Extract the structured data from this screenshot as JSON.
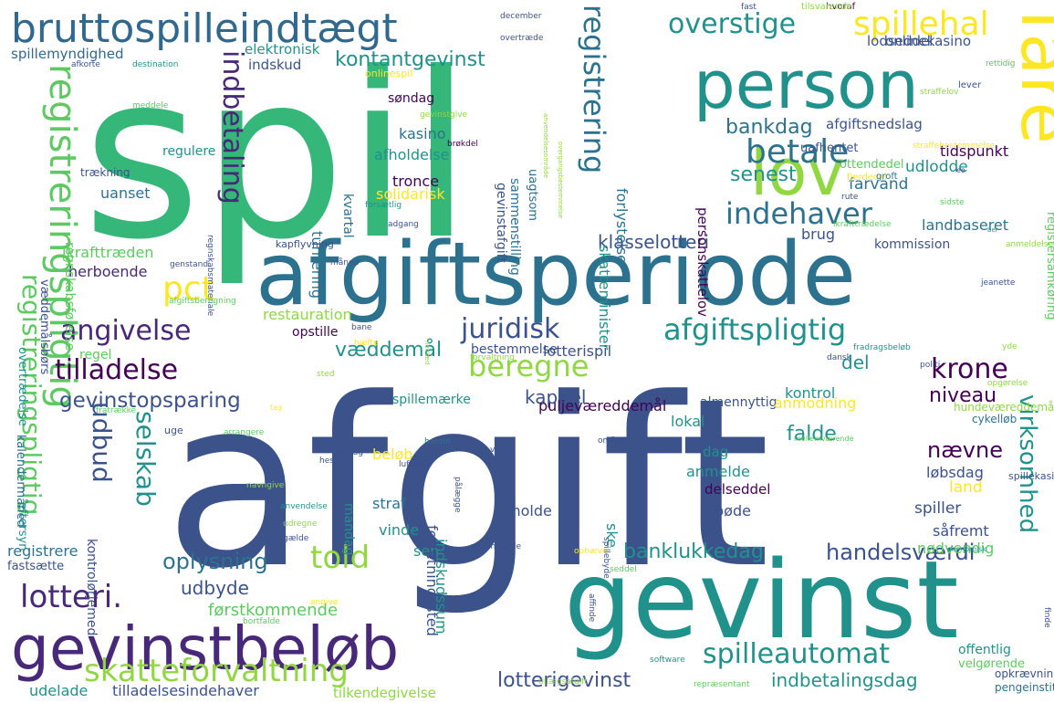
{
  "colors": {
    "c1": "#3b528b",
    "c2": "#35b779",
    "c3": "#2c728e",
    "c4": "#21918c",
    "c5": "#440154",
    "c6": "#482878",
    "c7": "#90d743",
    "c8": "#fde725",
    "c9": "#5ec962",
    "c10": "#31688e"
  },
  "words": [
    {
      "text": "spil",
      "color": "c2"
    },
    {
      "text": "afgift",
      "color": "c1"
    },
    {
      "text": "gevinst",
      "color": "c4"
    },
    {
      "text": "afgiftsperiode",
      "color": "c3"
    },
    {
      "text": "person",
      "color": "c4"
    },
    {
      "text": "fare",
      "color": "c8"
    },
    {
      "text": "lov",
      "color": "c7"
    },
    {
      "text": "gevinstbeløb",
      "color": "c6"
    },
    {
      "text": "bruttospilleindtægt",
      "color": "c10"
    },
    {
      "text": "spillehal",
      "color": "c8"
    },
    {
      "text": "overstige",
      "color": "c4"
    },
    {
      "text": "registreringspligtig",
      "color": "c9"
    },
    {
      "text": "registrering",
      "color": "c3"
    },
    {
      "text": "indbetaling",
      "color": "c6"
    },
    {
      "text": "betale",
      "color": "c3"
    },
    {
      "text": "indehaver",
      "color": "c3"
    },
    {
      "text": "pct",
      "color": "c8"
    },
    {
      "text": "angivelse",
      "color": "c6"
    },
    {
      "text": "juridisk",
      "color": "c1"
    },
    {
      "text": "afgiftspligtig",
      "color": "c4"
    },
    {
      "text": "tilladelse",
      "color": "c5"
    },
    {
      "text": "beregne",
      "color": "c7"
    },
    {
      "text": "krone",
      "color": "c5"
    },
    {
      "text": "gevinstopsparing",
      "color": "c1"
    },
    {
      "text": "registreringspligtig",
      "color": "c9"
    },
    {
      "text": "udbud",
      "color": "c1"
    },
    {
      "text": "selskab",
      "color": "c4"
    },
    {
      "text": "told",
      "color": "c7"
    },
    {
      "text": "lotteri.",
      "color": "c6"
    },
    {
      "text": "skatteforvaltning",
      "color": "c7"
    },
    {
      "text": "spilleautomat",
      "color": "c4"
    },
    {
      "text": "virksomhed",
      "color": "c4"
    },
    {
      "text": "handelsværdi",
      "color": "c1"
    },
    {
      "text": "oplysning",
      "color": "c3"
    },
    {
      "text": "banklukkedag",
      "color": "c4"
    },
    {
      "text": "lotterigevinst",
      "color": "c1"
    },
    {
      "text": "indbetalingsdag",
      "color": "c4"
    },
    {
      "text": "kontantgevinst",
      "color": "c4"
    },
    {
      "text": "bankdag",
      "color": "c3"
    },
    {
      "text": "klasselotteri",
      "color": "c1"
    },
    {
      "text": "senest",
      "color": "c4"
    },
    {
      "text": "niveau",
      "color": "c5"
    },
    {
      "text": "falde",
      "color": "c4"
    },
    {
      "text": "nævne",
      "color": "c5"
    },
    {
      "text": "kapitel",
      "color": "c1"
    },
    {
      "text": "udbyde",
      "color": "c1"
    },
    {
      "text": "del",
      "color": "c4"
    },
    {
      "text": "væddemål",
      "color": "c4"
    },
    {
      "text": "lodseddel",
      "color": "c1"
    },
    {
      "text": "onlinekasino",
      "color": "c1"
    },
    {
      "text": "ikrafttræden",
      "color": "c9"
    },
    {
      "text": "herboende",
      "color": "c6"
    },
    {
      "text": "førstkommende",
      "color": "c9"
    },
    {
      "text": "puljeværeddemål",
      "color": "c5"
    },
    {
      "text": "landbaseret",
      "color": "c3"
    },
    {
      "text": "farvand",
      "color": "c3"
    },
    {
      "text": "spillemyndighed",
      "color": "c10"
    },
    {
      "text": "elektronisk",
      "color": "c4"
    },
    {
      "text": "indskud",
      "color": "c1"
    },
    {
      "text": "afgiftsnedslag",
      "color": "c1"
    },
    {
      "text": "tidspunkt",
      "color": "c5"
    },
    {
      "text": "udlodde",
      "color": "c4"
    },
    {
      "text": "kasino",
      "color": "c3"
    },
    {
      "text": "afholdelse",
      "color": "c4"
    },
    {
      "text": "tronce",
      "color": "c5"
    },
    {
      "text": "solidarisk",
      "color": "c8"
    },
    {
      "text": "uanset",
      "color": "c3"
    },
    {
      "text": "søndag",
      "color": "c5"
    },
    {
      "text": "regulere",
      "color": "c4"
    },
    {
      "text": "kvartal",
      "color": "c3"
    },
    {
      "text": "turnering",
      "color": "c3"
    },
    {
      "text": "forlystelse",
      "color": "c3"
    },
    {
      "text": "skatteminister",
      "color": "c4"
    },
    {
      "text": "personskattelov",
      "color": "c5"
    },
    {
      "text": "regnskabsførelse",
      "color": "c9"
    },
    {
      "text": "brug",
      "color": "c1"
    },
    {
      "text": "kommission",
      "color": "c1"
    },
    {
      "text": "restauration",
      "color": "c7"
    },
    {
      "text": "opstille",
      "color": "c5"
    },
    {
      "text": "regel",
      "color": "c9"
    },
    {
      "text": "lokal",
      "color": "c4"
    },
    {
      "text": "almennyttig",
      "color": "c1"
    },
    {
      "text": "lotterispil",
      "color": "c1"
    },
    {
      "text": "bestemmelse",
      "color": "c1"
    },
    {
      "text": "spillemærke",
      "color": "c4"
    },
    {
      "text": "anmodning",
      "color": "c8"
    },
    {
      "text": "kontrol",
      "color": "c4"
    },
    {
      "text": "bøde",
      "color": "c1"
    },
    {
      "text": "spiller",
      "color": "c1"
    },
    {
      "text": "land",
      "color": "c8"
    },
    {
      "text": "såfremt",
      "color": "c1"
    },
    {
      "text": "løbsdag",
      "color": "c1"
    },
    {
      "text": "nødvendig",
      "color": "c9"
    },
    {
      "text": "anmelde",
      "color": "c4"
    },
    {
      "text": "dag",
      "color": "c4"
    },
    {
      "text": "delseddel",
      "color": "c5"
    },
    {
      "text": "afholde",
      "color": "c1"
    },
    {
      "text": "straf",
      "color": "c3"
    },
    {
      "text": "vinde",
      "color": "c4"
    },
    {
      "text": "sen",
      "color": "c4"
    },
    {
      "text": "ske",
      "color": "c4"
    },
    {
      "text": "indskudssum",
      "color": "c4"
    },
    {
      "text": "forretningssted",
      "color": "c1"
    },
    {
      "text": "mandag",
      "color": "c4"
    },
    {
      "text": "beløb",
      "color": "c8"
    },
    {
      "text": "registrere",
      "color": "c3"
    },
    {
      "text": "fastsætte",
      "color": "c1"
    },
    {
      "text": "udelade",
      "color": "c4"
    },
    {
      "text": "tilladelsesindehaver",
      "color": "c1"
    },
    {
      "text": "tilkendegivelse",
      "color": "c7"
    },
    {
      "text": "offentlig",
      "color": "c4"
    },
    {
      "text": "velgørende",
      "color": "c9"
    },
    {
      "text": "opkrævning",
      "color": "c1"
    },
    {
      "text": "pengeinstitut",
      "color": "c3"
    },
    {
      "text": "repræsentant",
      "color": "c9"
    },
    {
      "text": "software",
      "color": "c4"
    },
    {
      "text": "tillægsafgift",
      "color": "c7"
    },
    {
      "text": "angive",
      "color": "c8"
    },
    {
      "text": "bortfalde",
      "color": "c9"
    },
    {
      "text": "kontrolørjemed",
      "color": "c1"
    },
    {
      "text": "eftersyn",
      "color": "c4"
    },
    {
      "text": "kalendermåned",
      "color": "c3"
    },
    {
      "text": "overtrædelse",
      "color": "c4"
    },
    {
      "text": "væddemålsbørs",
      "color": "c1"
    },
    {
      "text": "afkorte",
      "color": "c1"
    },
    {
      "text": "destination",
      "color": "c4"
    },
    {
      "text": "onlinespil",
      "color": "c8"
    },
    {
      "text": "meddele",
      "color": "c9"
    },
    {
      "text": "trækning",
      "color": "c1"
    },
    {
      "text": "gevinstafgift",
      "color": "c1"
    },
    {
      "text": "sammenstilling",
      "color": "c3"
    },
    {
      "text": "uagtsom",
      "color": "c3"
    },
    {
      "text": "gevinstgive",
      "color": "c7"
    },
    {
      "text": "brøkdel",
      "color": "c5"
    },
    {
      "text": "uafhentet",
      "color": "c1"
    },
    {
      "text": "ottendedel",
      "color": "c9"
    },
    {
      "text": "fjerdedel",
      "color": "c8"
    },
    {
      "text": "groft",
      "color": "c3"
    },
    {
      "text": "rute",
      "color": "c1"
    },
    {
      "text": "straffebestemmelse",
      "color": "c8"
    },
    {
      "text": "registersamkøring",
      "color": "c9"
    },
    {
      "text": "straffelov",
      "color": "c7"
    },
    {
      "text": "hvoraf",
      "color": "c5"
    },
    {
      "text": "tilsvarende",
      "color": "c7"
    },
    {
      "text": "fast",
      "color": "c1"
    },
    {
      "text": "december",
      "color": "c1"
    },
    {
      "text": "overtræde",
      "color": "c1"
    },
    {
      "text": "rettidig",
      "color": "c9"
    },
    {
      "text": "lever",
      "color": "c1"
    },
    {
      "text": "anvendelsesområde",
      "color": "c7"
    },
    {
      "text": "overgangsbestemmelse",
      "color": "c7"
    },
    {
      "text": "regnskabsmateriale",
      "color": "c1"
    },
    {
      "text": "forsætlig",
      "color": "c4"
    },
    {
      "text": "adgang",
      "color": "c1"
    },
    {
      "text": "ikrafttrædelse",
      "color": "c9"
    },
    {
      "text": "sidste",
      "color": "c9"
    },
    {
      "text": "kapflyvning",
      "color": "c1"
    },
    {
      "text": "måned",
      "color": "c1"
    },
    {
      "text": "genstand",
      "color": "c1"
    },
    {
      "text": "afgiftsberegning",
      "color": "c9"
    },
    {
      "text": "jeanette",
      "color": "c1"
    },
    {
      "text": "anmeldelse",
      "color": "c7"
    },
    {
      "text": "ber",
      "color": "c4"
    },
    {
      "text": "bane",
      "color": "c1"
    },
    {
      "text": "hæfte",
      "color": "c8"
    },
    {
      "text": "nedlæd",
      "color": "c7"
    },
    {
      "text": "fradragsbeløb",
      "color": "c4"
    },
    {
      "text": "dansk",
      "color": "c1"
    },
    {
      "text": "politi",
      "color": "c1"
    },
    {
      "text": "opgørelse",
      "color": "c7"
    },
    {
      "text": "yde",
      "color": "c7"
    },
    {
      "text": "forvaltning",
      "color": "c7"
    },
    {
      "text": "hundeværeddemål",
      "color": "c7"
    },
    {
      "text": "cykelløb",
      "color": "c3"
    },
    {
      "text": "spillekasino",
      "color": "c1"
    },
    {
      "text": "fratrække",
      "color": "c9"
    },
    {
      "text": "arrangere",
      "color": "c9"
    },
    {
      "text": "fradrag",
      "color": "c1"
    },
    {
      "text": "luftrum",
      "color": "c1"
    },
    {
      "text": "herom",
      "color": "c3"
    },
    {
      "text": "omfatte",
      "color": "c1"
    },
    {
      "text": "mellemværende",
      "color": "c9"
    },
    {
      "text": "værdi",
      "color": "c1"
    },
    {
      "text": "økonomisk",
      "color": "c4"
    },
    {
      "text": "hest",
      "color": "c1"
    },
    {
      "text": "navngive",
      "color": "c7"
    },
    {
      "text": "anvendelse",
      "color": "c4"
    },
    {
      "text": "udregne",
      "color": "c7"
    },
    {
      "text": "gælde",
      "color": "c1"
    },
    {
      "text": "pålægge",
      "color": "c1"
    },
    {
      "text": "genanvende",
      "color": "c1"
    },
    {
      "text": "ophæve",
      "color": "c8"
    },
    {
      "text": "seddel",
      "color": "c9"
    },
    {
      "text": "spillebyde",
      "color": "c1"
    },
    {
      "text": "affinde",
      "color": "c1"
    },
    {
      "text": "finde",
      "color": "c1"
    },
    {
      "text": "uge",
      "color": "c1"
    },
    {
      "text": "sted",
      "color": "c7"
    },
    {
      "text": "tag",
      "color": "c8"
    },
    {
      "text": "ee",
      "color": "c1"
    }
  ]
}
